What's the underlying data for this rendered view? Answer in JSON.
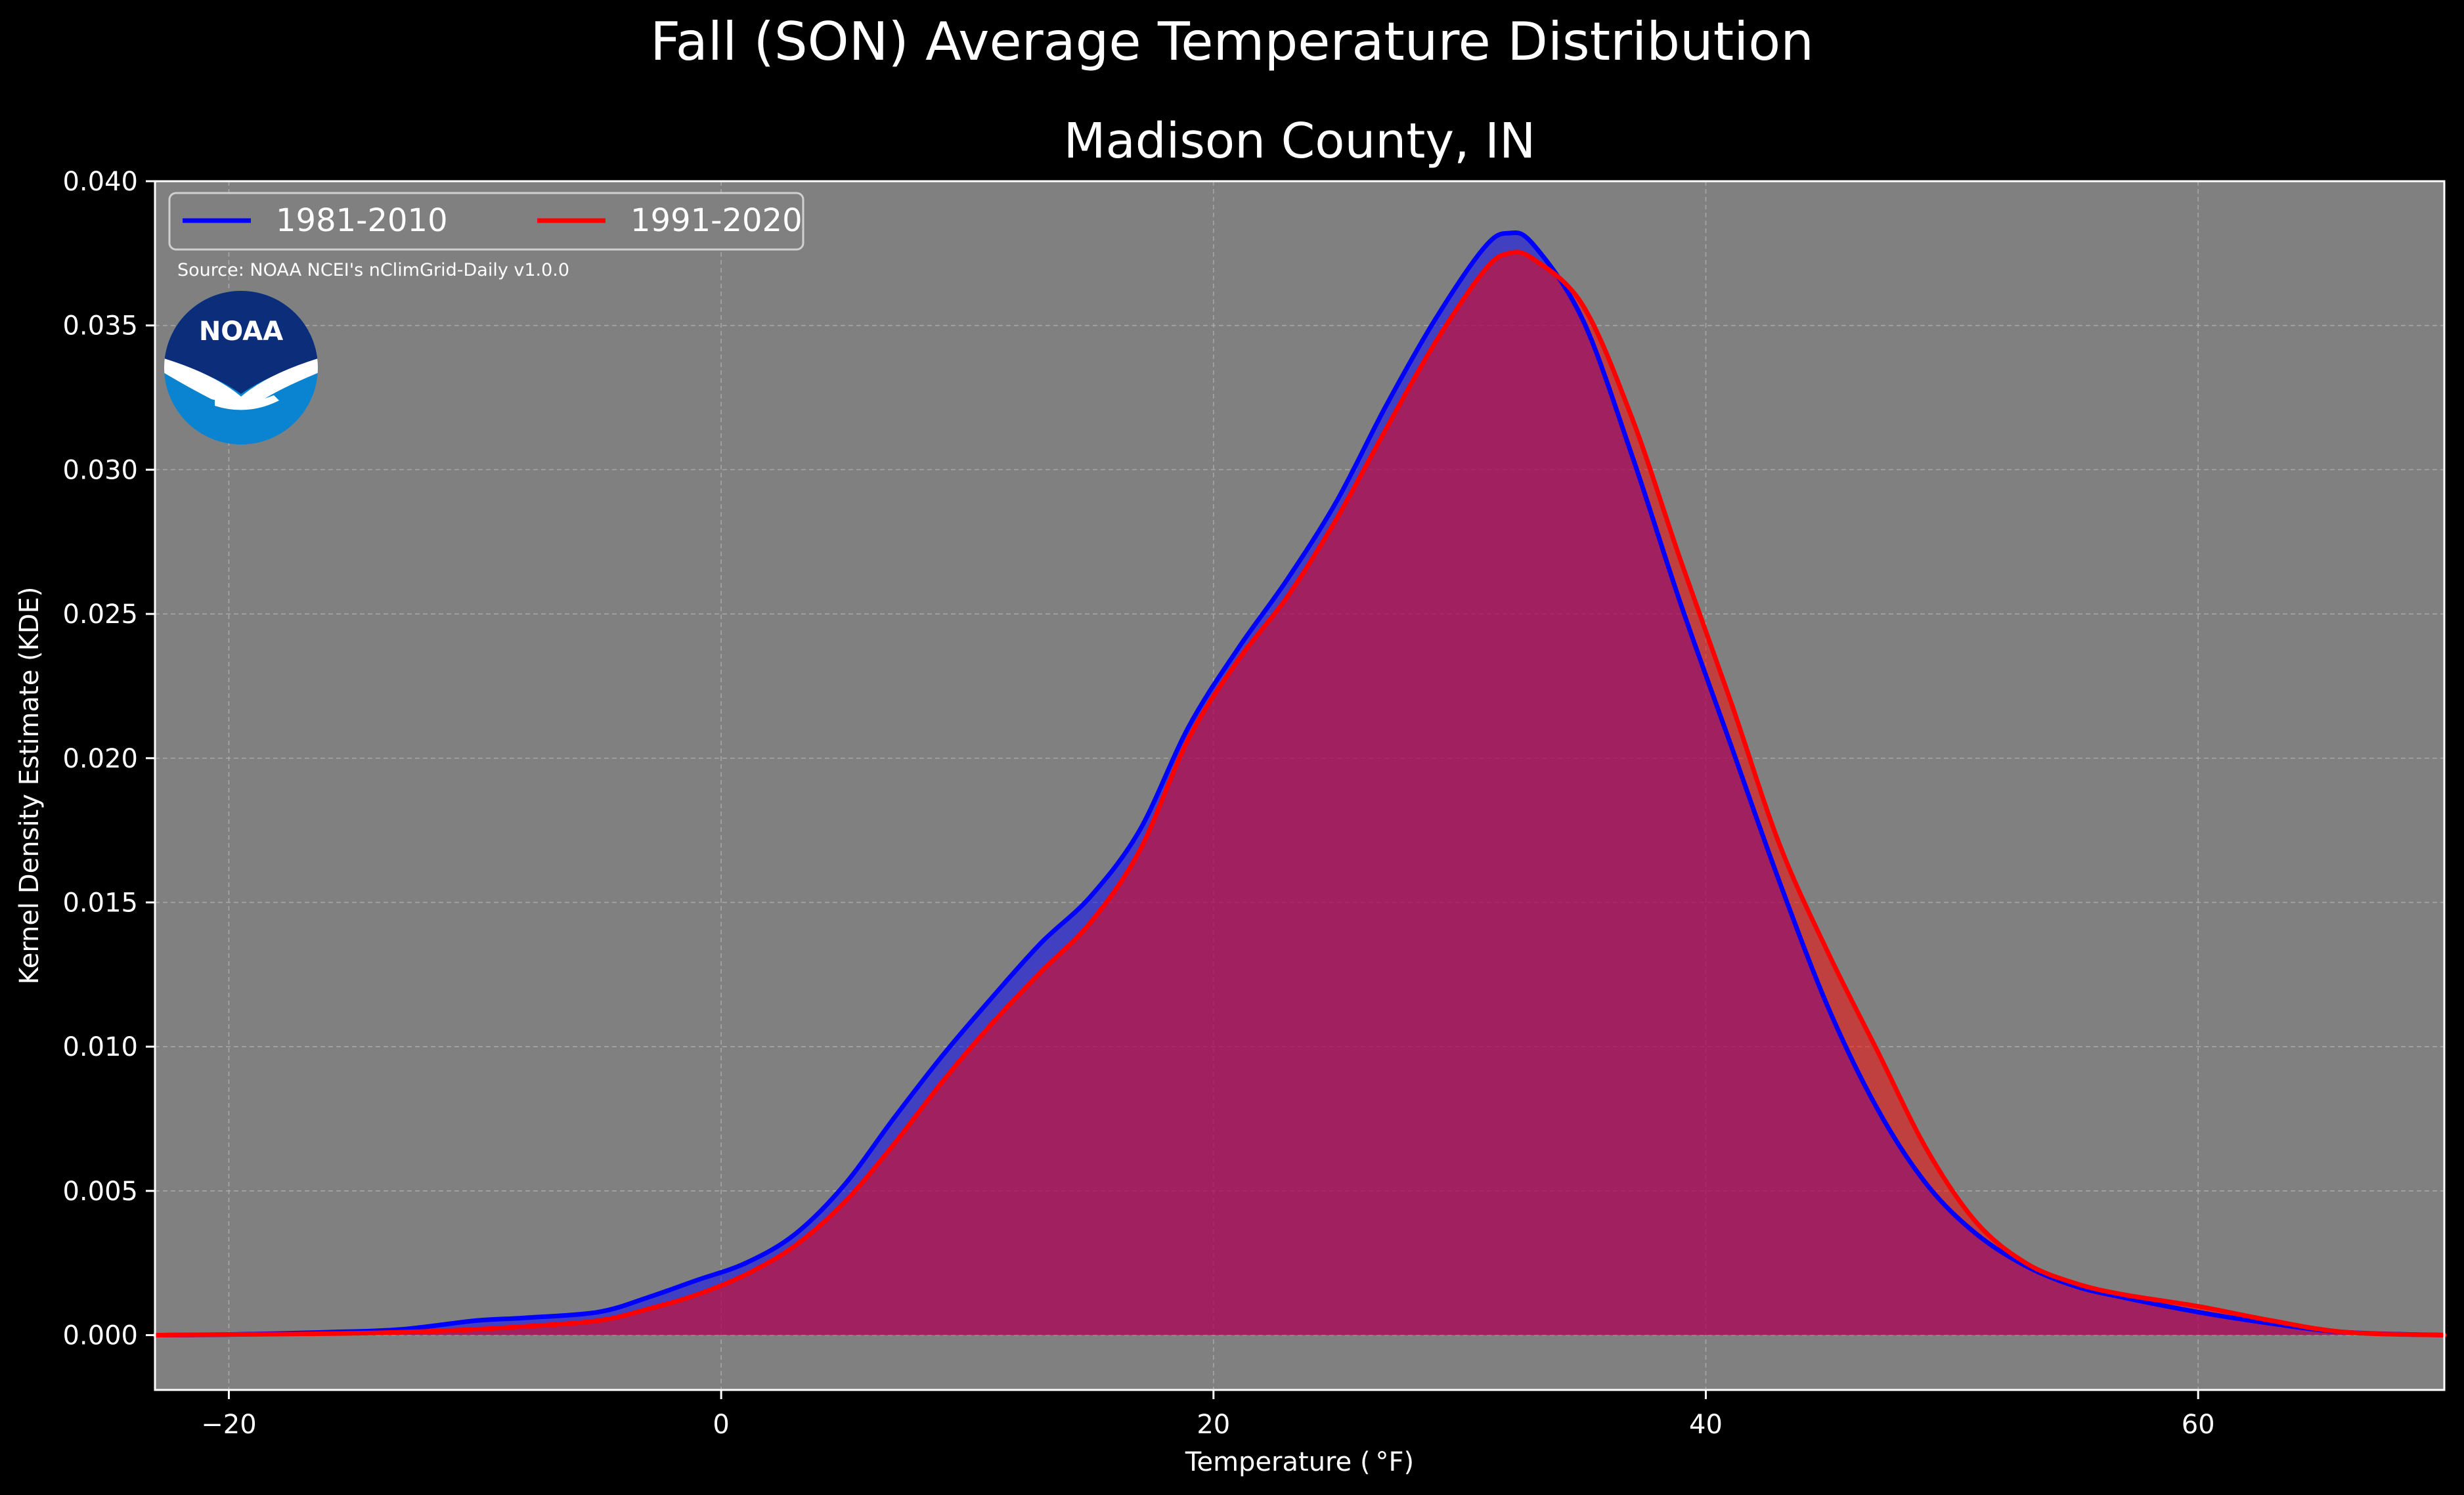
{
  "suptitle": "Fall (SON) Average Temperature Distribution",
  "chart_data": {
    "type": "area",
    "title": "Madison County, IN",
    "xlabel": "Temperature ( °F)",
    "ylabel": "Kernel Density Estimate (KDE)",
    "xlim": [
      -23,
      70
    ],
    "ylim": [
      -0.0019,
      0.04
    ],
    "xticks": [
      -20,
      0,
      20,
      40,
      60
    ],
    "xtick_labels": [
      "−20",
      "0",
      "20",
      "40",
      "60"
    ],
    "yticks": [
      0.0,
      0.005,
      0.01,
      0.015,
      0.02,
      0.025,
      0.03,
      0.035,
      0.04
    ],
    "ytick_labels": [
      "0.000",
      "0.005",
      "0.010",
      "0.015",
      "0.020",
      "0.025",
      "0.030",
      "0.035",
      "0.040"
    ],
    "grid": true,
    "legend_position": "top-left",
    "annotation": "Source: NOAA NCEI's nClimGrid-Daily v1.0.0",
    "logo_text": "NOAA",
    "background": "#808080",
    "series": [
      {
        "name": "1981-2010",
        "color": "#0000ff",
        "x": [
          -23,
          -20,
          -16,
          -13,
          -10,
          -8,
          -5,
          -3,
          -1,
          1,
          3,
          5,
          7,
          9,
          11,
          13,
          15,
          17,
          19,
          21,
          23,
          25,
          27,
          29,
          31,
          32,
          33,
          35,
          37,
          39,
          41,
          43,
          45,
          47,
          49,
          51,
          53,
          55,
          57,
          60,
          63,
          66,
          70
        ],
        "y": [
          0.0,
          2e-05,
          0.0001,
          0.0002,
          0.0005,
          0.0006,
          0.0008,
          0.0013,
          0.0019,
          0.0025,
          0.0035,
          0.0052,
          0.0075,
          0.0097,
          0.0117,
          0.0136,
          0.0152,
          0.0175,
          0.0211,
          0.0238,
          0.0262,
          0.0289,
          0.0322,
          0.0352,
          0.0377,
          0.0382,
          0.0378,
          0.0352,
          0.0305,
          0.0253,
          0.0205,
          0.0157,
          0.0113,
          0.0078,
          0.0052,
          0.0035,
          0.0024,
          0.0017,
          0.0013,
          0.0008,
          0.0004,
          0.0001,
          0.0
        ]
      },
      {
        "name": "1991-2020",
        "color": "#ff0000",
        "x": [
          -23,
          -20,
          -16,
          -13,
          -10,
          -8,
          -5,
          -3,
          -1,
          1,
          3,
          5,
          7,
          9,
          11,
          13,
          15,
          17,
          19,
          21,
          23,
          25,
          27,
          29,
          31,
          32,
          33,
          35,
          37,
          39,
          41,
          43,
          45,
          47,
          49,
          51,
          53,
          55,
          57,
          60,
          63,
          66,
          70
        ],
        "y": [
          0.0,
          2e-05,
          5e-05,
          0.0001,
          0.0002,
          0.0003,
          0.0005,
          0.0009,
          0.0014,
          0.0021,
          0.0031,
          0.0046,
          0.0066,
          0.0088,
          0.0108,
          0.0126,
          0.0143,
          0.0168,
          0.0207,
          0.0234,
          0.0256,
          0.0283,
          0.0314,
          0.0344,
          0.0369,
          0.0375,
          0.0373,
          0.0357,
          0.0318,
          0.0268,
          0.022,
          0.017,
          0.0132,
          0.0098,
          0.0064,
          0.0039,
          0.0025,
          0.0018,
          0.0014,
          0.001,
          0.0005,
          0.0001,
          0.0
        ]
      }
    ]
  }
}
